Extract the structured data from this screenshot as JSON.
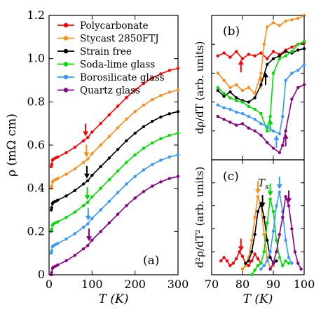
{
  "chart_data": [
    {
      "panel": "a",
      "type": "line",
      "panel_label": "(a)",
      "xlabel": "T (K)",
      "ylabel": "ρ (mΩ cm)",
      "xlim": [
        0,
        300
      ],
      "ylim": [
        0,
        1.2
      ],
      "xticks": [
        "0",
        "100",
        "200",
        "300"
      ],
      "yticks": [
        "0",
        "0.2",
        "0.4",
        "0.6",
        "0.8",
        "1.0",
        "1.2"
      ],
      "legend_position": "top-left",
      "series": [
        {
          "name": "Polycarbonate",
          "color": "#ff0000",
          "x": [
            5,
            6,
            8,
            10,
            15,
            20,
            40,
            60,
            80,
            90,
            100,
            120,
            140,
            160,
            180,
            200,
            220,
            240,
            260,
            280,
            300
          ],
          "y": [
            0.5,
            0.51,
            0.53,
            0.535,
            0.54,
            0.545,
            0.565,
            0.59,
            0.62,
            0.635,
            0.66,
            0.7,
            0.74,
            0.78,
            0.82,
            0.855,
            0.885,
            0.91,
            0.93,
            0.945,
            0.955
          ],
          "arrow_T": 85
        },
        {
          "name": "Stycast 2850FTJ",
          "color": "#ff8c1a",
          "x": [
            5,
            6,
            8,
            10,
            15,
            20,
            40,
            60,
            80,
            90,
            100,
            120,
            140,
            160,
            180,
            200,
            220,
            240,
            260,
            280,
            300
          ],
          "y": [
            0.4,
            0.41,
            0.43,
            0.435,
            0.44,
            0.445,
            0.465,
            0.49,
            0.52,
            0.535,
            0.56,
            0.6,
            0.64,
            0.68,
            0.72,
            0.755,
            0.785,
            0.81,
            0.83,
            0.845,
            0.855
          ],
          "arrow_T": 87
        },
        {
          "name": "Strain free",
          "color": "#000000",
          "x": [
            5,
            6,
            8,
            10,
            15,
            20,
            40,
            60,
            80,
            90,
            100,
            120,
            140,
            160,
            180,
            200,
            220,
            240,
            260,
            280,
            300
          ],
          "y": [
            0.3,
            0.31,
            0.33,
            0.335,
            0.34,
            0.345,
            0.365,
            0.39,
            0.42,
            0.435,
            0.46,
            0.5,
            0.54,
            0.58,
            0.62,
            0.655,
            0.685,
            0.71,
            0.73,
            0.745,
            0.755
          ],
          "arrow_T": 88
        },
        {
          "name": "Soda-lime glass",
          "color": "#00dd00",
          "x": [
            5,
            6,
            8,
            10,
            15,
            20,
            40,
            60,
            80,
            90,
            100,
            120,
            140,
            160,
            180,
            200,
            220,
            240,
            260,
            280,
            300
          ],
          "y": [
            0.2,
            0.21,
            0.23,
            0.235,
            0.24,
            0.245,
            0.265,
            0.29,
            0.32,
            0.335,
            0.36,
            0.4,
            0.44,
            0.48,
            0.52,
            0.555,
            0.585,
            0.61,
            0.63,
            0.645,
            0.655
          ],
          "arrow_T": 89
        },
        {
          "name": "Borosilicate glass",
          "color": "#3399ff",
          "x": [
            5,
            6,
            8,
            10,
            15,
            20,
            40,
            60,
            80,
            90,
            100,
            120,
            140,
            160,
            180,
            200,
            220,
            240,
            260,
            280,
            300
          ],
          "y": [
            0.1,
            0.11,
            0.13,
            0.135,
            0.14,
            0.145,
            0.165,
            0.19,
            0.22,
            0.235,
            0.26,
            0.3,
            0.34,
            0.38,
            0.42,
            0.455,
            0.485,
            0.51,
            0.53,
            0.545,
            0.555
          ],
          "arrow_T": 91
        },
        {
          "name": "Quartz glass",
          "color": "#880088",
          "x": [
            5,
            6,
            8,
            10,
            15,
            20,
            40,
            60,
            80,
            90,
            100,
            120,
            140,
            160,
            180,
            200,
            220,
            240,
            260,
            280,
            300
          ],
          "y": [
            0.0,
            0.01,
            0.03,
            0.035,
            0.04,
            0.045,
            0.065,
            0.09,
            0.12,
            0.135,
            0.16,
            0.2,
            0.24,
            0.28,
            0.32,
            0.355,
            0.385,
            0.41,
            0.43,
            0.445,
            0.455
          ],
          "arrow_T": 93
        }
      ]
    },
    {
      "panel": "b",
      "type": "line",
      "panel_label": "(b)",
      "xlabel": "T (K)",
      "ylabel": "dρ/dT (arb. units)",
      "xlim": [
        70,
        100
      ],
      "ylim": [
        0,
        1
      ],
      "y_ticklabels_shown": false,
      "series": [
        {
          "name": "Polycarbonate",
          "color": "#ff0000",
          "x": [
            72,
            74,
            76,
            78,
            80,
            82,
            84,
            86,
            88,
            90,
            92,
            94,
            96,
            98,
            100
          ],
          "y": [
            0.72,
            0.74,
            0.71,
            0.75,
            0.7,
            0.73,
            0.72,
            0.74,
            0.7,
            0.75,
            0.73,
            0.76,
            0.78,
            0.8,
            0.81
          ],
          "arrow_T": 79.5
        },
        {
          "name": "Stycast 2850FTJ",
          "color": "#ff8c1a",
          "x": [
            72,
            74,
            76,
            78,
            80,
            82,
            84,
            86,
            87,
            88,
            90,
            92,
            94,
            96,
            98,
            100
          ],
          "y": [
            0.6,
            0.55,
            0.5,
            0.52,
            0.48,
            0.5,
            0.46,
            0.6,
            0.8,
            0.92,
            0.95,
            0.93,
            0.96,
            0.97,
            0.98,
            1.0
          ],
          "arrow_T": 86
        },
        {
          "name": "Strain free",
          "color": "#000000",
          "x": [
            72,
            74,
            76,
            78,
            80,
            82,
            84,
            86,
            88,
            90,
            92,
            94,
            96,
            98,
            100
          ],
          "y": [
            0.48,
            0.44,
            0.47,
            0.43,
            0.41,
            0.4,
            0.43,
            0.52,
            0.66,
            0.7,
            0.72,
            0.75,
            0.74,
            0.76,
            0.77
          ],
          "arrow_T": 87.5
        },
        {
          "name": "Soda-lime glass",
          "color": "#00dd00",
          "x": [
            72,
            74,
            76,
            78,
            80,
            82,
            84,
            86,
            88,
            89,
            90,
            92,
            94,
            96,
            98,
            100
          ],
          "y": [
            0.5,
            0.46,
            0.43,
            0.41,
            0.4,
            0.37,
            0.35,
            0.32,
            0.2,
            0.3,
            0.6,
            0.7,
            0.72,
            0.75,
            0.8,
            0.82
          ],
          "arrow_T": 89
        },
        {
          "name": "Borosilicate glass",
          "color": "#3399ff",
          "x": [
            72,
            74,
            76,
            78,
            80,
            82,
            84,
            86,
            88,
            90,
            92,
            93,
            94,
            96,
            98,
            100
          ],
          "y": [
            0.38,
            0.36,
            0.35,
            0.33,
            0.32,
            0.3,
            0.28,
            0.25,
            0.23,
            0.2,
            0.18,
            0.3,
            0.55,
            0.6,
            0.62,
            0.66
          ],
          "arrow_T": 91
        },
        {
          "name": "Quartz glass",
          "color": "#880088",
          "x": [
            72,
            74,
            76,
            78,
            80,
            82,
            84,
            86,
            88,
            90,
            92,
            93,
            94,
            96,
            98,
            100
          ],
          "y": [
            0.3,
            0.28,
            0.26,
            0.24,
            0.25,
            0.22,
            0.2,
            0.17,
            0.12,
            0.08,
            0.05,
            0.1,
            0.2,
            0.42,
            0.5,
            0.52
          ],
          "arrow_T": 94
        }
      ]
    },
    {
      "panel": "c",
      "type": "line",
      "panel_label": "(c)",
      "xlabel": "T (K)",
      "ylabel": "d²ρ/dT² (arb. units)",
      "xlim": [
        70,
        100
      ],
      "ylim": [
        0,
        1
      ],
      "xticks": [
        "70",
        "80",
        "90",
        "100"
      ],
      "y_ticklabels_shown": false,
      "annotation": "Ts",
      "series": [
        {
          "name": "Polycarbonate",
          "color": "#ff0000",
          "x": [
            73,
            74,
            75,
            76,
            77,
            78,
            79,
            80,
            81,
            82,
            83,
            84,
            85,
            86
          ],
          "y": [
            0.12,
            0.15,
            0.12,
            0.08,
            0.1,
            0.14,
            0.2,
            0.16,
            0.1,
            0.08,
            0.12,
            0.18,
            0.14,
            0.1
          ],
          "arrow_T": 79.5
        },
        {
          "name": "Stycast 2850FTJ",
          "color": "#ff8c1a",
          "x": [
            80,
            81,
            82,
            83,
            84,
            85,
            86,
            87,
            88,
            89,
            90
          ],
          "y": [
            0.05,
            0.08,
            0.15,
            0.3,
            0.5,
            0.68,
            0.6,
            0.35,
            0.15,
            0.05,
            0.08
          ],
          "arrow_T": 85
        },
        {
          "name": "Strain free",
          "color": "#000000",
          "x": [
            81,
            82,
            83,
            84,
            85,
            86,
            87,
            88,
            89,
            90,
            91
          ],
          "y": [
            0.1,
            0.12,
            0.2,
            0.35,
            0.55,
            0.62,
            0.5,
            0.3,
            0.15,
            0.1,
            0.12
          ],
          "arrow_T": 86.5
        },
        {
          "name": "Soda-lime glass",
          "color": "#00dd00",
          "x": [
            83,
            84,
            85,
            86,
            87,
            88,
            89,
            90,
            91,
            92,
            93,
            94,
            95
          ],
          "y": [
            0.0,
            0.04,
            0.08,
            0.1,
            0.2,
            0.45,
            0.66,
            0.55,
            0.3,
            0.15,
            0.08,
            0.12,
            0.1
          ],
          "arrow_T": 89
        },
        {
          "name": "Borosilicate glass",
          "color": "#3399ff",
          "x": [
            86,
            87,
            88,
            89,
            90,
            91,
            92,
            93,
            94,
            95,
            96
          ],
          "y": [
            0.05,
            0.08,
            0.12,
            0.2,
            0.38,
            0.6,
            0.72,
            0.55,
            0.3,
            0.15,
            0.1
          ],
          "arrow_T": 92
        },
        {
          "name": "Quartz glass",
          "color": "#880088",
          "x": [
            89,
            90,
            91,
            92,
            93,
            94,
            95,
            96,
            97,
            98,
            99
          ],
          "y": [
            0.05,
            0.1,
            0.2,
            0.35,
            0.5,
            0.68,
            0.6,
            0.4,
            0.2,
            0.1,
            0.05
          ],
          "arrow_T": 95
        }
      ]
    }
  ]
}
